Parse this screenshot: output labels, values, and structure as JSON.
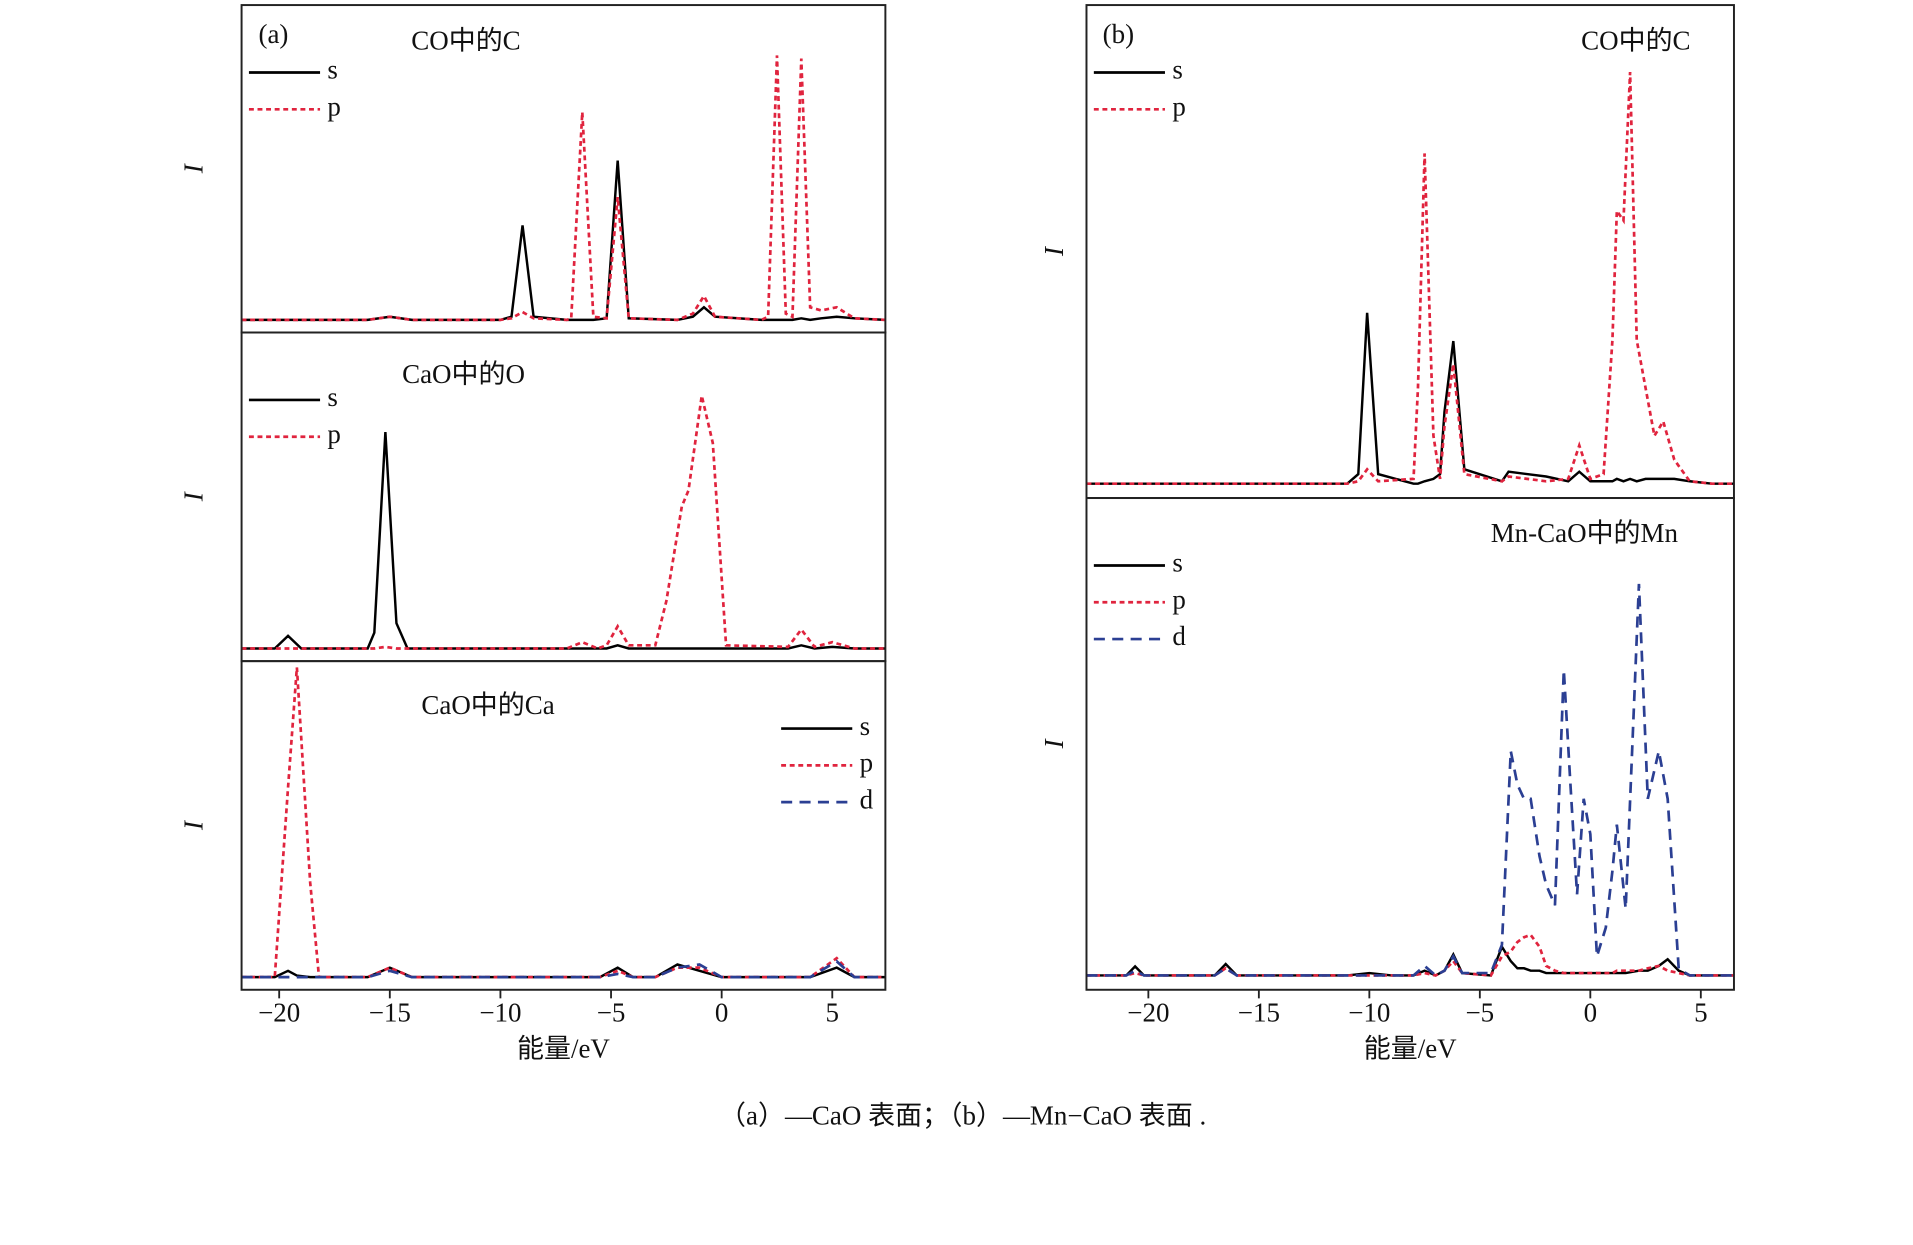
{
  "figure": {
    "caption": "（a）—CaO 表面；（b）—Mn−CaO 表面 ."
  },
  "chart_data": [
    {
      "type": "line",
      "panel_label": "(a)",
      "title": "CO中的C",
      "ylabel": "I",
      "legend": "upper left",
      "xlim": [
        -21.7,
        7.4
      ],
      "ylim": [
        -4,
        100
      ],
      "x": [
        -21.7,
        -16,
        -15,
        -14,
        -10,
        -9.5,
        -9,
        -8.5,
        -7,
        -6.8,
        -6.3,
        -5.8,
        -5.2,
        -4.7,
        -4.2,
        -2,
        -1.3,
        -0.8,
        -0.3,
        1.8,
        2.1,
        2.5,
        2.9,
        3.2,
        3.6,
        4,
        4.5,
        5.2,
        6,
        7.4
      ],
      "series": [
        {
          "name": "s",
          "color": "#000000",
          "dash": "solid",
          "values": [
            0,
            0,
            1,
            0,
            0,
            1,
            30,
            1,
            0,
            0,
            0,
            0,
            0.5,
            50.6,
            0.5,
            0,
            1,
            4,
            1,
            0,
            0,
            0,
            0,
            0,
            0.5,
            0,
            0.5,
            1,
            0.5,
            0
          ]
        },
        {
          "name": "p",
          "color": "#e0243e",
          "dash": "dotted",
          "values": [
            0,
            0,
            1,
            0,
            0,
            0.5,
            2.5,
            0.5,
            0,
            0.5,
            66,
            1,
            0.5,
            39,
            0.5,
            0,
            2,
            7.6,
            1,
            0,
            1,
            84,
            2,
            1,
            83,
            4,
            3,
            4,
            0.5,
            0
          ]
        }
      ]
    },
    {
      "type": "line",
      "title": "CaO中的O",
      "ylabel": "I",
      "legend": "upper left",
      "xlim": [
        -21.7,
        7.4
      ],
      "ylim": [
        -4,
        100
      ],
      "x": [
        -21.7,
        -20.2,
        -19.6,
        -19,
        -16,
        -15.7,
        -15.2,
        -14.7,
        -14.2,
        -7,
        -6.3,
        -5.6,
        -5.2,
        -4.7,
        -4.2,
        -3,
        -2.5,
        -1.8,
        -1.5,
        -0.9,
        -0.4,
        0.2,
        3,
        3.6,
        4.2,
        5,
        6,
        7.4
      ],
      "series": [
        {
          "name": "s",
          "color": "#000000",
          "dash": "solid",
          "values": [
            0,
            0,
            4,
            0,
            0,
            5,
            68.5,
            8,
            0,
            0,
            0,
            0,
            0,
            1,
            0,
            0,
            0,
            0,
            0,
            0,
            0,
            0,
            0,
            1,
            0,
            0.5,
            0,
            0
          ]
        },
        {
          "name": "p",
          "color": "#e0243e",
          "dash": "dotted",
          "values": [
            0,
            0,
            0,
            0,
            0,
            0,
            0.5,
            0,
            0,
            0,
            2,
            0,
            1,
            7,
            1,
            1,
            15,
            45,
            50,
            80,
            65,
            1,
            0.5,
            6,
            0.5,
            2,
            0,
            0
          ]
        }
      ]
    },
    {
      "type": "line",
      "title": "CaO中的Ca",
      "ylabel": "I",
      "legend": "upper right",
      "xlabel": "能量/eV",
      "xlim": [
        -21.7,
        7.4
      ],
      "ylim": [
        -4,
        100
      ],
      "xticks": [
        {
          "value": -20,
          "label": "−20"
        },
        {
          "value": -15,
          "label": "−15"
        },
        {
          "value": -10,
          "label": "−10"
        },
        {
          "value": -5,
          "label": "−5"
        },
        0,
        5
      ],
      "x": [
        -21.7,
        -20.2,
        -19.6,
        -19.2,
        -18.6,
        -18.2,
        -16,
        -15,
        -14,
        -5.5,
        -4.7,
        -4,
        -3,
        -2,
        -1,
        0,
        4,
        5.2,
        6,
        7.4
      ],
      "series": [
        {
          "name": "s",
          "color": "#000000",
          "dash": "solid",
          "values": [
            0,
            0,
            2,
            0.5,
            0,
            0,
            0,
            3,
            0,
            0,
            3,
            0,
            0,
            4,
            2,
            0,
            0,
            3,
            0,
            0
          ]
        },
        {
          "name": "p",
          "color": "#e0243e",
          "dash": "dotted",
          "values": [
            0,
            0,
            60,
            98,
            30,
            0,
            0,
            3,
            0,
            0,
            2,
            0,
            0,
            3,
            3,
            0,
            0,
            6,
            0,
            0
          ]
        },
        {
          "name": "d",
          "color": "#2b3f93",
          "dash": "dashed",
          "values": [
            0,
            0,
            0,
            0,
            0,
            0,
            0,
            2,
            0,
            0,
            1,
            0,
            0,
            3,
            4,
            0,
            0,
            5,
            0,
            0
          ]
        }
      ]
    },
    {
      "type": "line",
      "panel_label": "(b)",
      "title": "CO中的C",
      "ylabel": "I",
      "legend": "upper left",
      "xlim": [
        -22.8,
        6.5
      ],
      "ylim": [
        -3,
        100
      ],
      "x": [
        -22.8,
        -11,
        -10.5,
        -10.1,
        -9.6,
        -8,
        -7.8,
        -7.5,
        -7.1,
        -6.8,
        -6.6,
        -6.2,
        -5.7,
        -4,
        -3.7,
        -2,
        -1,
        -0.5,
        0,
        0.6,
        1,
        1.2,
        1.5,
        1.8,
        2.1,
        2.5,
        2.9,
        3.3,
        3.8,
        4.5,
        5.5,
        6.5
      ],
      "series": [
        {
          "name": "s",
          "color": "#000000",
          "dash": "solid",
          "values": [
            0,
            0,
            2,
            35.7,
            2,
            0,
            0,
            0.5,
            1,
            2,
            15,
            29.8,
            3,
            0.5,
            2.5,
            1.5,
            0.5,
            2.5,
            0.5,
            0.5,
            0.5,
            1,
            0.5,
            1,
            0.5,
            1,
            1,
            1,
            1,
            0.5,
            0,
            0
          ]
        },
        {
          "name": "p",
          "color": "#e0243e",
          "dash": "dotted",
          "values": [
            0,
            0,
            0.5,
            3,
            0.5,
            1,
            20,
            69,
            10,
            1,
            12,
            25,
            2,
            0.5,
            1.5,
            0.5,
            1,
            8,
            1,
            2,
            30,
            57,
            55,
            86,
            30,
            20,
            10,
            13,
            5,
            0.5,
            0,
            0
          ]
        }
      ]
    },
    {
      "type": "line",
      "title": "Mn-CaO中的Mn",
      "ylabel": "I",
      "legend": "upper left",
      "xlabel": "能量/eV",
      "xlim": [
        -22.8,
        6.5
      ],
      "ylim": [
        -3,
        100
      ],
      "xticks": [
        {
          "value": -20,
          "label": "−20"
        },
        {
          "value": -15,
          "label": "−15"
        },
        {
          "value": -10,
          "label": "−10"
        },
        {
          "value": -5,
          "label": "−5"
        },
        0,
        5
      ],
      "x": [
        -22.8,
        -21,
        -20.6,
        -20.2,
        -17,
        -16.5,
        -16,
        -11,
        -10,
        -9,
        -8,
        -7.5,
        -7,
        -6.6,
        -6.2,
        -5.8,
        -4.5,
        -4,
        -3.6,
        -3.3,
        -3,
        -2.7,
        -2.3,
        -2,
        -1.6,
        -1.2,
        -0.9,
        -0.6,
        -0.3,
        0,
        0.3,
        0.7,
        1,
        1.2,
        1.6,
        2.2,
        2.6,
        3.1,
        3.5,
        4,
        4.5,
        5.5,
        6.5
      ],
      "series": [
        {
          "name": "s",
          "color": "#000000",
          "dash": "solid",
          "values": [
            0,
            0,
            1.9,
            0,
            0,
            2.4,
            0,
            0,
            0.5,
            0,
            0,
            1,
            0,
            1,
            4.4,
            0.5,
            0,
            6,
            3,
            1.5,
            1.5,
            1,
            1,
            0.5,
            0.5,
            0.5,
            0.5,
            0.5,
            0.5,
            0.5,
            0.5,
            0.5,
            0.5,
            0.5,
            0.5,
            1,
            1,
            2,
            3.4,
            1,
            0,
            0,
            0
          ]
        },
        {
          "name": "p",
          "color": "#e0243e",
          "dash": "dotted",
          "values": [
            0,
            0,
            0.5,
            0,
            0,
            1.5,
            0,
            0,
            0,
            0,
            0,
            0.5,
            0,
            1,
            3,
            0.5,
            0,
            4,
            5,
            7,
            8,
            8.5,
            6,
            2,
            1,
            0.5,
            0.5,
            0.5,
            0.5,
            0.5,
            0.5,
            0.5,
            0.5,
            1,
            1,
            1,
            1.5,
            2,
            1,
            0.5,
            0,
            0,
            0
          ]
        },
        {
          "name": "d",
          "color": "#2b3f93",
          "dash": "dashed",
          "values": [
            0,
            0,
            1,
            0,
            0,
            1.5,
            0,
            0,
            0,
            0,
            0,
            2,
            0,
            1,
            4,
            0.5,
            0.5,
            6.4,
            47,
            40,
            37,
            37,
            25,
            19,
            14.7,
            64,
            40,
            17,
            37,
            29.6,
            4,
            10,
            21.9,
            31.6,
            14,
            82,
            37,
            47,
            37,
            1.4,
            0,
            0,
            0
          ]
        }
      ]
    }
  ]
}
